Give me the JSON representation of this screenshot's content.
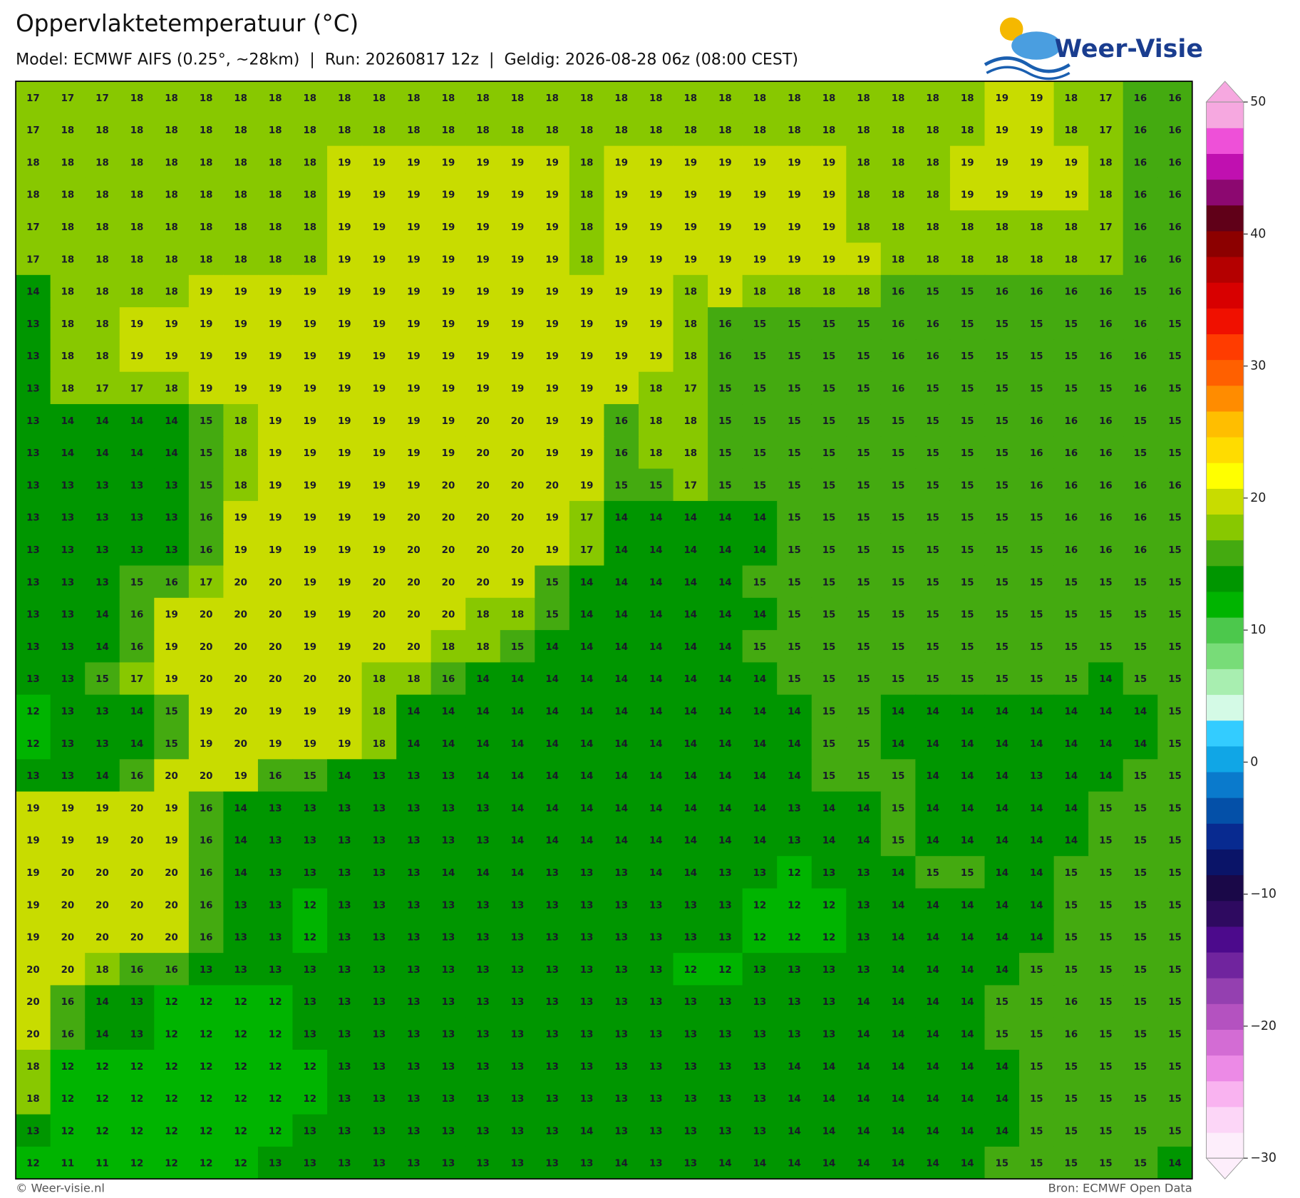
{
  "header": {
    "title": "Oppervlaktetemperatuur (°C)",
    "subtitle": "Model: ECMWF AIFS (0.25°, ~28km)  |  Run: 20260817 12z  |  Geldig: 2026-08-28 06z (08:00 CEST)"
  },
  "logo": "Weer-Visie",
  "grid": {
    "values": [
      [
        17,
        17,
        17,
        18,
        18,
        18,
        18,
        18,
        18,
        18,
        18,
        18,
        18,
        18,
        18,
        18,
        18,
        18,
        18,
        18,
        18,
        18,
        18,
        18,
        18,
        18,
        18,
        18,
        19,
        19,
        18,
        17,
        16,
        16
      ],
      [
        17,
        18,
        18,
        18,
        18,
        18,
        18,
        18,
        18,
        18,
        18,
        18,
        18,
        18,
        18,
        18,
        18,
        18,
        18,
        18,
        18,
        18,
        18,
        18,
        18,
        18,
        18,
        18,
        19,
        19,
        18,
        17,
        16,
        16
      ],
      [
        18,
        18,
        18,
        18,
        18,
        18,
        18,
        18,
        18,
        19,
        19,
        19,
        19,
        19,
        19,
        19,
        18,
        19,
        19,
        19,
        19,
        19,
        19,
        19,
        18,
        18,
        18,
        19,
        19,
        19,
        19,
        18,
        16,
        16
      ],
      [
        18,
        18,
        18,
        18,
        18,
        18,
        18,
        18,
        18,
        19,
        19,
        19,
        19,
        19,
        19,
        19,
        18,
        19,
        19,
        19,
        19,
        19,
        19,
        19,
        18,
        18,
        18,
        19,
        19,
        19,
        19,
        18,
        16,
        16
      ],
      [
        17,
        18,
        18,
        18,
        18,
        18,
        18,
        18,
        18,
        19,
        19,
        19,
        19,
        19,
        19,
        19,
        18,
        19,
        19,
        19,
        19,
        19,
        19,
        19,
        18,
        18,
        18,
        18,
        18,
        18,
        18,
        17,
        16,
        16
      ],
      [
        17,
        18,
        18,
        18,
        18,
        18,
        18,
        18,
        18,
        19,
        19,
        19,
        19,
        19,
        19,
        19,
        18,
        19,
        19,
        19,
        19,
        19,
        19,
        19,
        19,
        18,
        18,
        18,
        18,
        18,
        18,
        17,
        16,
        16
      ],
      [
        14,
        18,
        18,
        18,
        18,
        19,
        19,
        19,
        19,
        19,
        19,
        19,
        19,
        19,
        19,
        19,
        19,
        19,
        19,
        18,
        19,
        18,
        18,
        18,
        18,
        16,
        15,
        15,
        16,
        16,
        16,
        16,
        15,
        16
      ],
      [
        13,
        18,
        18,
        19,
        19,
        19,
        19,
        19,
        19,
        19,
        19,
        19,
        19,
        19,
        19,
        19,
        19,
        19,
        19,
        18,
        16,
        15,
        15,
        15,
        15,
        16,
        16,
        15,
        15,
        15,
        15,
        16,
        16,
        15
      ],
      [
        13,
        18,
        18,
        19,
        19,
        19,
        19,
        19,
        19,
        19,
        19,
        19,
        19,
        19,
        19,
        19,
        19,
        19,
        19,
        18,
        16,
        15,
        15,
        15,
        15,
        16,
        16,
        15,
        15,
        15,
        15,
        16,
        16,
        15
      ],
      [
        13,
        18,
        17,
        17,
        18,
        19,
        19,
        19,
        19,
        19,
        19,
        19,
        19,
        19,
        19,
        19,
        19,
        19,
        18,
        17,
        15,
        15,
        15,
        15,
        15,
        16,
        15,
        15,
        15,
        15,
        15,
        15,
        16,
        15
      ],
      [
        13,
        14,
        14,
        14,
        14,
        15,
        18,
        19,
        19,
        19,
        19,
        19,
        19,
        20,
        20,
        19,
        19,
        16,
        18,
        18,
        15,
        15,
        15,
        15,
        15,
        15,
        15,
        15,
        15,
        16,
        16,
        16,
        15,
        15
      ],
      [
        13,
        14,
        14,
        14,
        14,
        15,
        18,
        19,
        19,
        19,
        19,
        19,
        19,
        20,
        20,
        19,
        19,
        16,
        18,
        18,
        15,
        15,
        15,
        15,
        15,
        15,
        15,
        15,
        15,
        16,
        16,
        16,
        15,
        15
      ],
      [
        13,
        13,
        13,
        13,
        13,
        15,
        18,
        19,
        19,
        19,
        19,
        19,
        20,
        20,
        20,
        20,
        19,
        15,
        15,
        17,
        15,
        15,
        15,
        15,
        15,
        15,
        15,
        15,
        15,
        16,
        16,
        16,
        16,
        16
      ],
      [
        13,
        13,
        13,
        13,
        13,
        16,
        19,
        19,
        19,
        19,
        19,
        20,
        20,
        20,
        20,
        19,
        17,
        14,
        14,
        14,
        14,
        14,
        15,
        15,
        15,
        15,
        15,
        15,
        15,
        15,
        16,
        16,
        16,
        15
      ],
      [
        13,
        13,
        13,
        13,
        13,
        16,
        19,
        19,
        19,
        19,
        19,
        20,
        20,
        20,
        20,
        19,
        17,
        14,
        14,
        14,
        14,
        14,
        15,
        15,
        15,
        15,
        15,
        15,
        15,
        15,
        16,
        16,
        16,
        15
      ],
      [
        13,
        13,
        13,
        15,
        16,
        17,
        20,
        20,
        19,
        19,
        20,
        20,
        20,
        20,
        19,
        15,
        14,
        14,
        14,
        14,
        14,
        15,
        15,
        15,
        15,
        15,
        15,
        15,
        15,
        15,
        15,
        15,
        15,
        15
      ],
      [
        13,
        13,
        14,
        16,
        19,
        20,
        20,
        20,
        19,
        19,
        20,
        20,
        20,
        18,
        18,
        15,
        14,
        14,
        14,
        14,
        14,
        14,
        15,
        15,
        15,
        15,
        15,
        15,
        15,
        15,
        15,
        15,
        15,
        15
      ],
      [
        13,
        13,
        14,
        16,
        19,
        20,
        20,
        20,
        19,
        19,
        20,
        20,
        18,
        18,
        15,
        14,
        14,
        14,
        14,
        14,
        14,
        15,
        15,
        15,
        15,
        15,
        15,
        15,
        15,
        15,
        15,
        15,
        15,
        15
      ],
      [
        13,
        13,
        15,
        17,
        19,
        20,
        20,
        20,
        20,
        20,
        18,
        18,
        16,
        14,
        14,
        14,
        14,
        14,
        14,
        14,
        14,
        14,
        15,
        15,
        15,
        15,
        15,
        15,
        15,
        15,
        15,
        14,
        15,
        15
      ],
      [
        12,
        13,
        13,
        14,
        15,
        19,
        20,
        19,
        19,
        19,
        18,
        14,
        14,
        14,
        14,
        14,
        14,
        14,
        14,
        14,
        14,
        14,
        14,
        15,
        15,
        14,
        14,
        14,
        14,
        14,
        14,
        14,
        14,
        15
      ],
      [
        12,
        13,
        13,
        14,
        15,
        19,
        20,
        19,
        19,
        19,
        18,
        14,
        14,
        14,
        14,
        14,
        14,
        14,
        14,
        14,
        14,
        14,
        14,
        15,
        15,
        14,
        14,
        14,
        14,
        14,
        14,
        14,
        14,
        15
      ],
      [
        13,
        13,
        14,
        16,
        20,
        20,
        19,
        16,
        15,
        14,
        13,
        13,
        13,
        14,
        14,
        14,
        14,
        14,
        14,
        14,
        14,
        14,
        14,
        15,
        15,
        15,
        14,
        14,
        14,
        13,
        14,
        14,
        15,
        15
      ],
      [
        19,
        19,
        19,
        20,
        19,
        16,
        14,
        13,
        13,
        13,
        13,
        13,
        13,
        13,
        14,
        14,
        14,
        14,
        14,
        14,
        14,
        14,
        13,
        14,
        14,
        15,
        14,
        14,
        14,
        14,
        14,
        15,
        15,
        15
      ],
      [
        19,
        19,
        19,
        20,
        19,
        16,
        14,
        13,
        13,
        13,
        13,
        13,
        13,
        13,
        14,
        14,
        14,
        14,
        14,
        14,
        14,
        14,
        13,
        14,
        14,
        15,
        14,
        14,
        14,
        14,
        14,
        15,
        15,
        15
      ],
      [
        19,
        20,
        20,
        20,
        20,
        16,
        14,
        13,
        13,
        13,
        13,
        13,
        14,
        14,
        14,
        13,
        13,
        13,
        14,
        14,
        13,
        13,
        12,
        13,
        13,
        14,
        15,
        15,
        14,
        14,
        15,
        15,
        15,
        15
      ],
      [
        19,
        20,
        20,
        20,
        20,
        16,
        13,
        13,
        12,
        13,
        13,
        13,
        13,
        13,
        13,
        13,
        13,
        13,
        13,
        13,
        13,
        12,
        12,
        12,
        13,
        14,
        14,
        14,
        14,
        14,
        15,
        15,
        15,
        15
      ],
      [
        19,
        20,
        20,
        20,
        20,
        16,
        13,
        13,
        12,
        13,
        13,
        13,
        13,
        13,
        13,
        13,
        13,
        13,
        13,
        13,
        13,
        12,
        12,
        12,
        13,
        14,
        14,
        14,
        14,
        14,
        15,
        15,
        15,
        15
      ],
      [
        20,
        20,
        18,
        16,
        16,
        13,
        13,
        13,
        13,
        13,
        13,
        13,
        13,
        13,
        13,
        13,
        13,
        13,
        13,
        12,
        12,
        13,
        13,
        13,
        13,
        14,
        14,
        14,
        14,
        15,
        15,
        15,
        15,
        15
      ],
      [
        20,
        16,
        14,
        13,
        12,
        12,
        12,
        12,
        13,
        13,
        13,
        13,
        13,
        13,
        13,
        13,
        13,
        13,
        13,
        13,
        13,
        13,
        13,
        13,
        14,
        14,
        14,
        14,
        15,
        15,
        16,
        15,
        15,
        15
      ],
      [
        20,
        16,
        14,
        13,
        12,
        12,
        12,
        12,
        13,
        13,
        13,
        13,
        13,
        13,
        13,
        13,
        13,
        13,
        13,
        13,
        13,
        13,
        13,
        13,
        14,
        14,
        14,
        14,
        15,
        15,
        16,
        15,
        15,
        15
      ],
      [
        18,
        12,
        12,
        12,
        12,
        12,
        12,
        12,
        12,
        13,
        13,
        13,
        13,
        13,
        13,
        13,
        13,
        13,
        13,
        13,
        13,
        13,
        14,
        14,
        14,
        14,
        14,
        14,
        14,
        15,
        15,
        15,
        15,
        15
      ],
      [
        18,
        12,
        12,
        12,
        12,
        12,
        12,
        12,
        12,
        13,
        13,
        13,
        13,
        13,
        13,
        13,
        13,
        13,
        13,
        13,
        13,
        13,
        14,
        14,
        14,
        14,
        14,
        14,
        14,
        15,
        15,
        15,
        15,
        15
      ],
      [
        13,
        12,
        12,
        12,
        12,
        12,
        12,
        12,
        13,
        13,
        13,
        13,
        13,
        13,
        13,
        13,
        14,
        13,
        13,
        13,
        13,
        13,
        14,
        14,
        14,
        14,
        14,
        14,
        14,
        15,
        15,
        15,
        15,
        15
      ],
      [
        12,
        11,
        11,
        12,
        12,
        12,
        12,
        13,
        13,
        13,
        13,
        13,
        13,
        13,
        13,
        13,
        13,
        14,
        13,
        13,
        14,
        14,
        14,
        14,
        14,
        14,
        14,
        14,
        15,
        15,
        15,
        15,
        15,
        14
      ]
    ]
  },
  "colorbar": {
    "lim": [
      -30,
      50
    ],
    "colors": [
      "#fdeefb",
      "#fcd6f7",
      "#f9b3f0",
      "#ec8ae6",
      "#d36cd4",
      "#b452c0",
      "#9440b0",
      "#70249e",
      "#4c0a8c",
      "#2e0a60",
      "#1a0848",
      "#0a1468",
      "#082a90",
      "#0450a8",
      "#0a7acc",
      "#10a6e6",
      "#33ccff",
      "#d4fae6",
      "#a8eeb0",
      "#78dc78",
      "#4cc84c",
      "#00b400",
      "#009600",
      "#44aa10",
      "#88c800",
      "#c8dc00",
      "#ffff00",
      "#ffdc00",
      "#ffbe00",
      "#ff8c00",
      "#ff6000",
      "#ff3c00",
      "#f01000",
      "#d80000",
      "#b40000",
      "#8c0000",
      "#600018",
      "#8c0870",
      "#c010b0",
      "#ee50d8",
      "#f6a8e0"
    ],
    "ticks": [
      {
        "value": -30,
        "label": "−30"
      },
      {
        "value": -20,
        "label": "−20"
      },
      {
        "value": -10,
        "label": "−10"
      },
      0,
      10,
      20,
      30,
      40,
      50
    ]
  },
  "footer": {
    "left": "© Weer-visie.nl",
    "right": "Bron: ECMWF Open Data"
  }
}
